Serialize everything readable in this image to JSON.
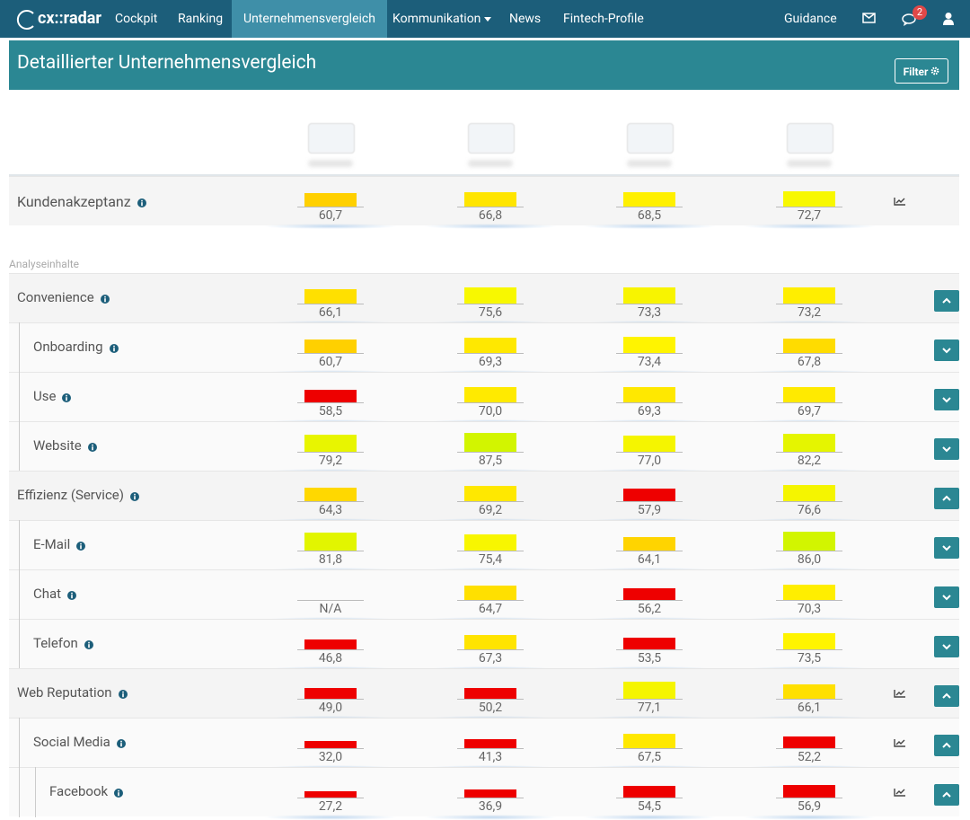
{
  "nav": {
    "logo": "cx::radar",
    "items": [
      "Cockpit",
      "Ranking",
      "Unternehmensvergleich",
      "Kommunikation",
      "News",
      "Fintech-Profile"
    ],
    "active": 2,
    "right": "Guidance",
    "badge": 2
  },
  "header": {
    "title": "Detaillierter Unternehmensvergleich",
    "filter": "Filter"
  },
  "summary": {
    "label": "Kundenakzeptanz",
    "trend_icon": true,
    "cells": [
      {
        "value": 60.7,
        "label": "60,7",
        "color": "#ffd000"
      },
      {
        "value": 66.8,
        "label": "66,8",
        "color": "#ffe500"
      },
      {
        "value": 68.5,
        "label": "68,5",
        "color": "#fff000"
      },
      {
        "value": 72.7,
        "label": "72,7",
        "color": "#f8f800"
      }
    ]
  },
  "section": "Analyseinhalte",
  "rows": [
    {
      "label": "Convenience",
      "level": 0,
      "toggle": "up",
      "trend_icon": false,
      "cells": [
        {
          "value": 66.1,
          "label": "66,1",
          "color": "#ffe000"
        },
        {
          "value": 75.6,
          "label": "75,6",
          "color": "#f8f800"
        },
        {
          "value": 73.3,
          "label": "73,3",
          "color": "#f8f400"
        },
        {
          "value": 73.2,
          "label": "73,2",
          "color": "#ffee00"
        }
      ]
    },
    {
      "label": "Onboarding",
      "level": 1,
      "toggle": "down",
      "trend_icon": false,
      "cells": [
        {
          "value": 60.7,
          "label": "60,7",
          "color": "#ffd000"
        },
        {
          "value": 69.3,
          "label": "69,3",
          "color": "#ffe800"
        },
        {
          "value": 73.4,
          "label": "73,4",
          "color": "#fff400"
        },
        {
          "value": 67.8,
          "label": "67,8",
          "color": "#ffdc00"
        }
      ]
    },
    {
      "label": "Use",
      "level": 1,
      "toggle": "down",
      "trend_icon": false,
      "cells": [
        {
          "value": 58.5,
          "label": "58,5",
          "color": "#ee0000"
        },
        {
          "value": 70.0,
          "label": "70,0",
          "color": "#ffea00"
        },
        {
          "value": 69.3,
          "label": "69,3",
          "color": "#ffe800"
        },
        {
          "value": 69.7,
          "label": "69,7",
          "color": "#ffea00"
        }
      ]
    },
    {
      "label": "Website",
      "level": 1,
      "toggle": "down",
      "trend_icon": false,
      "cells": [
        {
          "value": 79.2,
          "label": "79,2",
          "color": "#e8f500"
        },
        {
          "value": 87.5,
          "label": "87,5",
          "color": "#d2f500"
        },
        {
          "value": 77.0,
          "label": "77,0",
          "color": "#f5f500"
        },
        {
          "value": 82.2,
          "label": "82,2",
          "color": "#e5f500"
        }
      ]
    },
    {
      "label": "Effizienz (Service)",
      "level": 0,
      "toggle": "up",
      "trend_icon": false,
      "cells": [
        {
          "value": 64.3,
          "label": "64,3",
          "color": "#ffd800"
        },
        {
          "value": 69.2,
          "label": "69,2",
          "color": "#ffe800"
        },
        {
          "value": 57.9,
          "label": "57,9",
          "color": "#ee0000"
        },
        {
          "value": 76.6,
          "label": "76,6",
          "color": "#f5f500"
        }
      ]
    },
    {
      "label": "E-Mail",
      "level": 1,
      "toggle": "down",
      "trend_icon": false,
      "cells": [
        {
          "value": 81.8,
          "label": "81,8",
          "color": "#e2f500"
        },
        {
          "value": 75.4,
          "label": "75,4",
          "color": "#f8f600"
        },
        {
          "value": 64.1,
          "label": "64,1",
          "color": "#ffd400"
        },
        {
          "value": 86.0,
          "label": "86,0",
          "color": "#d2f500"
        }
      ]
    },
    {
      "label": "Chat",
      "level": 1,
      "toggle": "down",
      "trend_icon": false,
      "cells": [
        {
          "value": null,
          "label": "N/A",
          "color": null
        },
        {
          "value": 64.7,
          "label": "64,7",
          "color": "#ffe000"
        },
        {
          "value": 56.2,
          "label": "56,2",
          "color": "#ee0000"
        },
        {
          "value": 70.3,
          "label": "70,3",
          "color": "#ffee00"
        }
      ]
    },
    {
      "label": "Telefon",
      "level": 1,
      "toggle": "down",
      "trend_icon": false,
      "cells": [
        {
          "value": 46.8,
          "label": "46,8",
          "color": "#ee0000"
        },
        {
          "value": 67.3,
          "label": "67,3",
          "color": "#ffe400"
        },
        {
          "value": 53.5,
          "label": "53,5",
          "color": "#ee0000"
        },
        {
          "value": 73.5,
          "label": "73,5",
          "color": "#fff400"
        }
      ]
    },
    {
      "label": "Web Reputation",
      "level": 0,
      "toggle": "up",
      "trend_icon": true,
      "cells": [
        {
          "value": 49.0,
          "label": "49,0",
          "color": "#ee0000"
        },
        {
          "value": 50.2,
          "label": "50,2",
          "color": "#ee0000"
        },
        {
          "value": 77.1,
          "label": "77,1",
          "color": "#f5f500"
        },
        {
          "value": 66.1,
          "label": "66,1",
          "color": "#ffe000"
        }
      ]
    },
    {
      "label": "Social Media",
      "level": 1,
      "toggle": "up",
      "trend_icon": true,
      "cells": [
        {
          "value": 32.0,
          "label": "32,0",
          "color": "#ee0000"
        },
        {
          "value": 41.3,
          "label": "41,3",
          "color": "#ee0000"
        },
        {
          "value": 67.5,
          "label": "67,5",
          "color": "#ffe800"
        },
        {
          "value": 52.2,
          "label": "52,2",
          "color": "#ee0000"
        }
      ]
    },
    {
      "label": "Facebook",
      "level": 2,
      "toggle": "up",
      "trend_icon": true,
      "cells": [
        {
          "value": 27.2,
          "label": "27,2",
          "color": "#ee0000"
        },
        {
          "value": 36.9,
          "label": "36,9",
          "color": "#ee0000"
        },
        {
          "value": 54.5,
          "label": "54,5",
          "color": "#ee0000"
        },
        {
          "value": 56.9,
          "label": "56,9",
          "color": "#ee0000"
        }
      ]
    }
  ]
}
